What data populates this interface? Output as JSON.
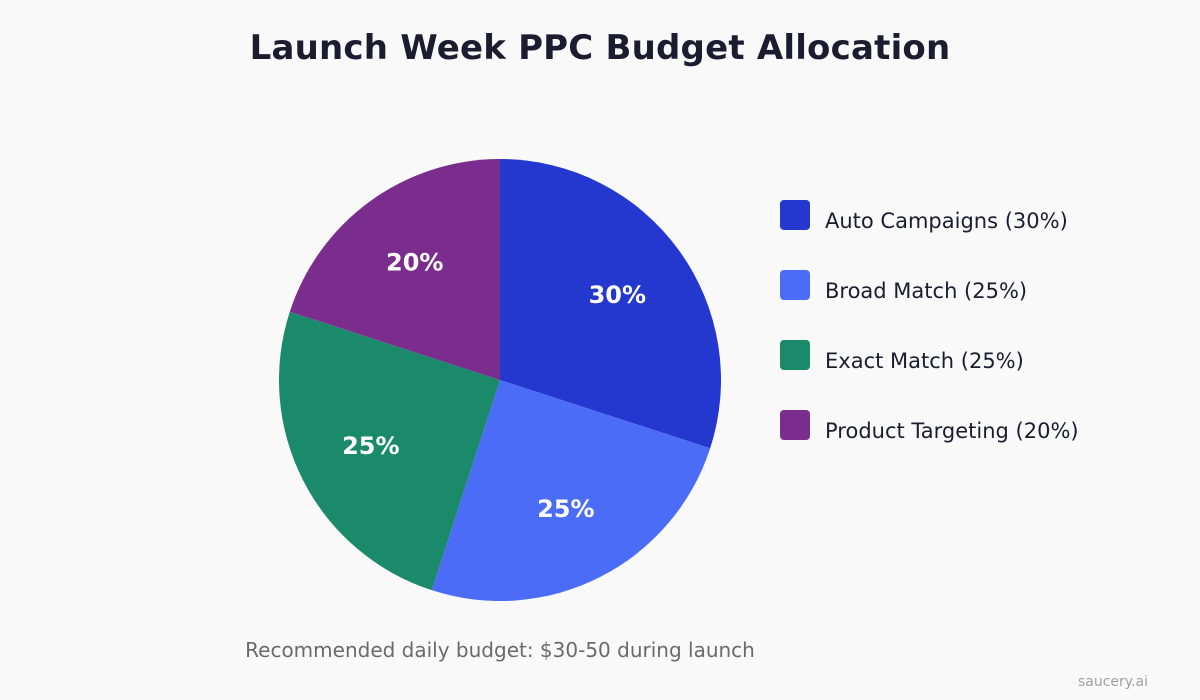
{
  "chart_data": {
    "type": "pie",
    "title": "Launch Week PPC Budget Allocation",
    "slices": [
      {
        "label": "Auto Campaigns (30%)",
        "value": 30,
        "display": "30%",
        "color": "#2438cf"
      },
      {
        "label": "Broad Match (25%)",
        "value": 25,
        "display": "25%",
        "color": "#4a6cf7"
      },
      {
        "label": "Exact Match (25%)",
        "value": 25,
        "display": "25%",
        "color": "#1a8a6b"
      },
      {
        "label": "Product Targeting (20%)",
        "value": 20,
        "display": "20%",
        "color": "#7b2d8e"
      }
    ],
    "start_angle_deg": 0,
    "direction": "clockwise",
    "legend_position": "right"
  },
  "footnote": "Recommended daily budget: $30-50 during launch",
  "watermark": "saucery.ai"
}
